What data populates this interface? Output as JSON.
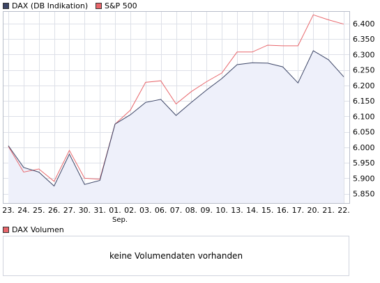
{
  "legend": {
    "dax": "DAX (DB Indikation)",
    "sp": "S&P 500",
    "volume": "DAX Volumen"
  },
  "volume_panel": {
    "message": "keine Volumendaten vorhanden"
  },
  "colors": {
    "dax_line": "#3c4566",
    "dax_fill": "#eef0fa",
    "sp_line": "#e8666b",
    "grid": "#dde0e8"
  },
  "chart_data": {
    "type": "line",
    "categories": [
      "23.",
      "24.",
      "25.",
      "26.",
      "27.",
      "30.",
      "31.",
      "01.",
      "02.",
      "03.",
      "06.",
      "07.",
      "08.",
      "09.",
      "10.",
      "13.",
      "14.",
      "15.",
      "16.",
      "17.",
      "20.",
      "21.",
      "22."
    ],
    "month_label": "Sep.",
    "month_label_at": "01.",
    "y_ticks": [
      "5.850",
      "5.900",
      "5.950",
      "6.000",
      "6.050",
      "6.100",
      "6.150",
      "6.200",
      "6.250",
      "6.300",
      "6.350",
      "6.400"
    ],
    "ylim": [
      5820,
      6440
    ],
    "y_axis": "right",
    "grid": true,
    "series": [
      {
        "name": "DAX (DB Indikation)",
        "values": [
          6005,
          5935,
          5920,
          5875,
          5978,
          5880,
          5893,
          6075,
          6105,
          6145,
          6155,
          6103,
          6145,
          6185,
          6222,
          6267,
          6273,
          6272,
          6260,
          6208,
          6312,
          6283,
          6228
        ]
      },
      {
        "name": "S&P 500",
        "values": [
          6003,
          5920,
          5930,
          5890,
          5990,
          5900,
          5897,
          6075,
          6120,
          6210,
          6215,
          6140,
          6180,
          6212,
          6240,
          6308,
          6308,
          6330,
          6328,
          6328,
          6428,
          6412,
          6398
        ]
      }
    ]
  }
}
